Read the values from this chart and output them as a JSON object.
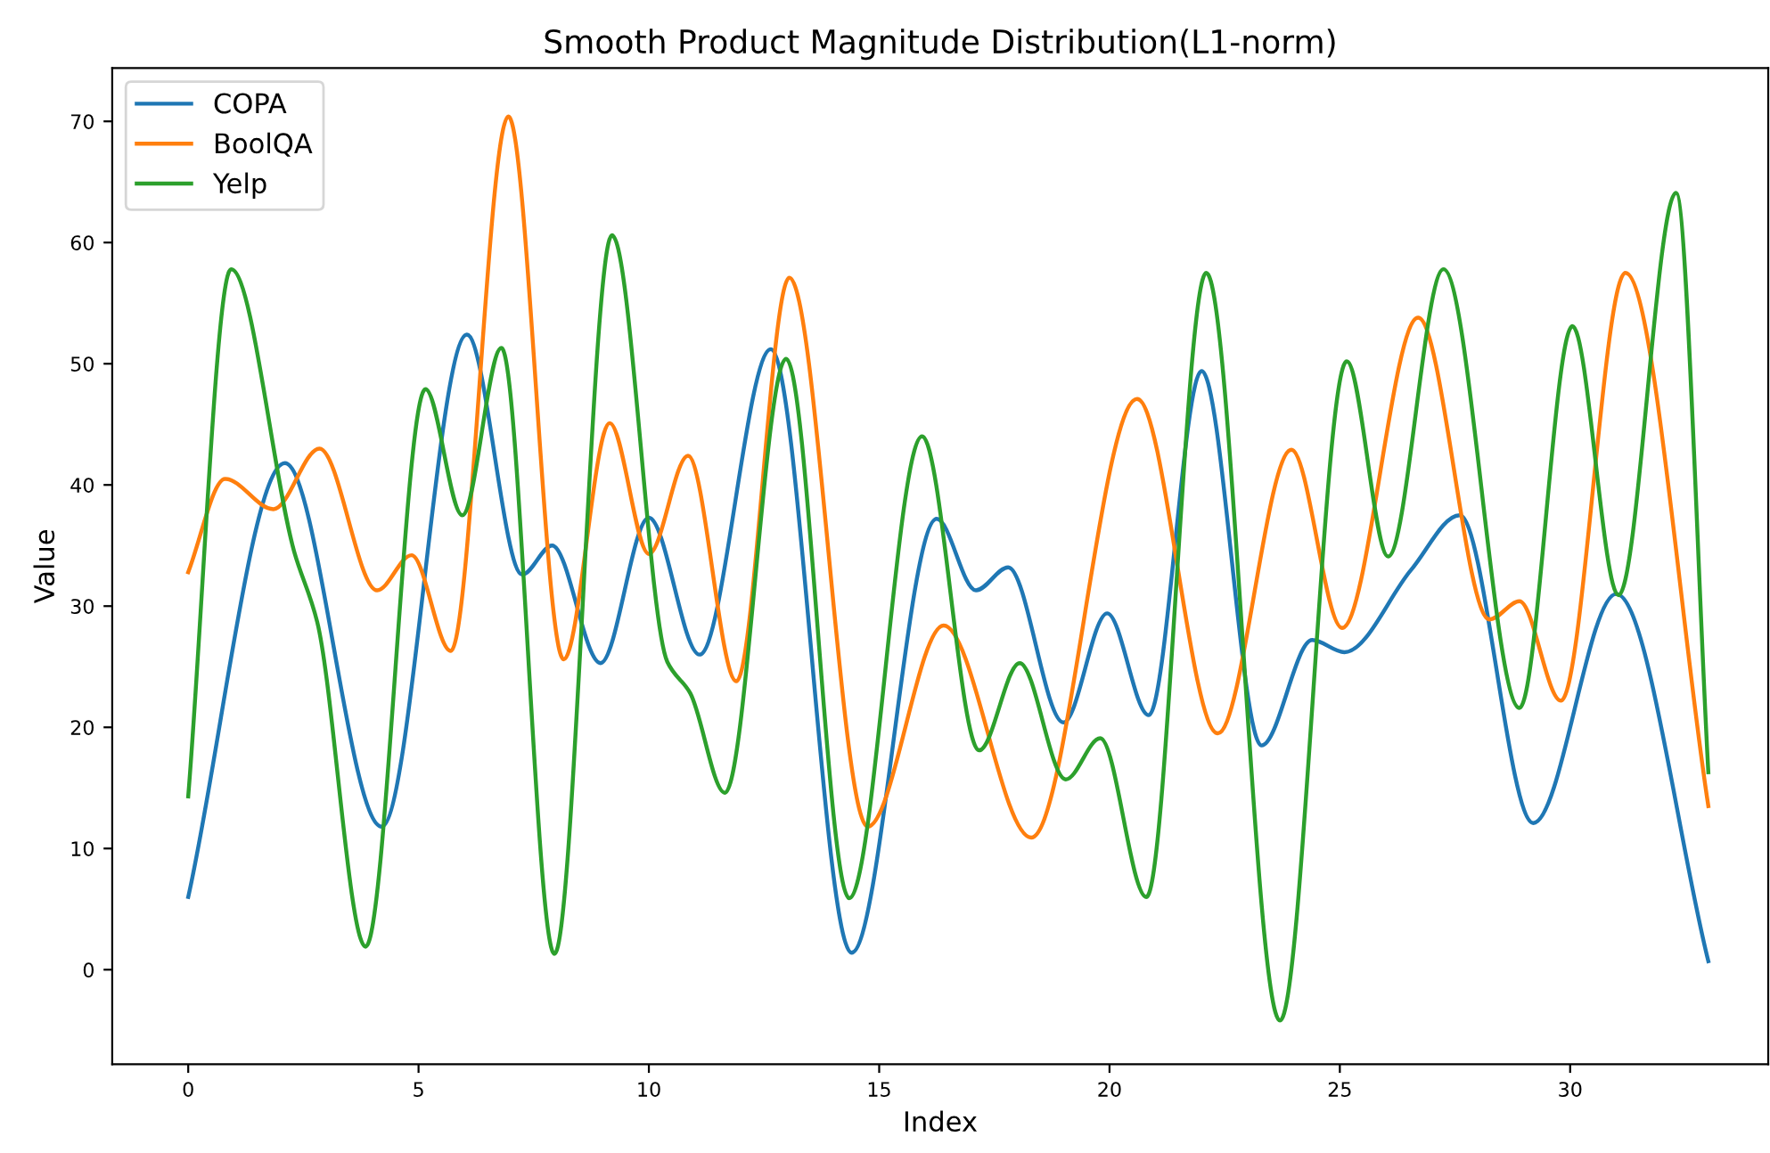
{
  "chart_data": {
    "type": "line",
    "title": "Smooth Product Magnitude Distribution(L1-norm)",
    "xlabel": "Index",
    "ylabel": "Value",
    "xlim": [
      -1.65,
      34.3
    ],
    "ylim": [
      -7.8,
      74.4
    ],
    "xticks": [
      0,
      5,
      10,
      15,
      20,
      25,
      30
    ],
    "yticks": [
      0,
      10,
      20,
      30,
      40,
      50,
      60,
      70
    ],
    "legend": "top left",
    "grid": false,
    "line_style": "solid",
    "marker": "none",
    "series": [
      {
        "name": "COPA",
        "color": "#1f77b4",
        "x": [
          0,
          2.1,
          4.2,
          6.05,
          7.25,
          7.9,
          8.95,
          10,
          11.1,
          12.65,
          14.4,
          16.25,
          17.1,
          17.8,
          19.0,
          19.95,
          20.85,
          22.0,
          23.3,
          24.4,
          25.1,
          26.55,
          27.6,
          29.2,
          31.0,
          33
        ],
        "values": [
          6.0,
          41.8,
          11.8,
          52.4,
          32.6,
          35,
          25.3,
          37.3,
          26,
          51.2,
          1.4,
          37.2,
          31.3,
          33.2,
          20.4,
          29.4,
          21,
          49.4,
          18.5,
          27.2,
          26.2,
          33,
          37.5,
          12.1,
          31,
          0.7
        ]
      },
      {
        "name": "BoolQA",
        "color": "#ff7f0e",
        "x": [
          0,
          0.8,
          1.85,
          2.85,
          4.1,
          4.85,
          5.7,
          6.95,
          8.15,
          9.15,
          10.0,
          10.85,
          11.9,
          13.05,
          14.75,
          16.4,
          18.3,
          20.6,
          22.35,
          23.95,
          25.05,
          26.7,
          28.25,
          28.9,
          29.8,
          31.2,
          33
        ],
        "values": [
          32.8,
          40.5,
          38,
          43,
          31.3,
          34.2,
          26.3,
          70.4,
          25.6,
          45.1,
          34.3,
          42.4,
          23.8,
          57.1,
          11.8,
          28.4,
          10.9,
          47.1,
          19.5,
          42.9,
          28.2,
          53.8,
          28.9,
          30.4,
          22.2,
          57.5,
          13.5
        ]
      },
      {
        "name": "Yelp",
        "color": "#2ca02c",
        "x": [
          0,
          0.93,
          2.3,
          2.8,
          3.85,
          5.15,
          5.95,
          6.8,
          7.95,
          9.2,
          10.4,
          10.9,
          11.65,
          12.98,
          14.35,
          15.93,
          17.17,
          18.05,
          19.05,
          19.8,
          20.8,
          22.1,
          23.7,
          25.15,
          26.05,
          27.25,
          28.9,
          30.05,
          31.05,
          32.3,
          33
        ],
        "values": [
          14.3,
          57.8,
          34.5,
          28.7,
          1.9,
          47.9,
          37.5,
          51.3,
          1.3,
          60.6,
          25.4,
          22.8,
          14.6,
          50.4,
          5.9,
          44,
          18.1,
          25.3,
          15.7,
          19.1,
          6,
          57.5,
          -4.2,
          50.2,
          34.1,
          57.8,
          21.6,
          53.1,
          30.9,
          64.1,
          16.3
        ]
      }
    ]
  }
}
